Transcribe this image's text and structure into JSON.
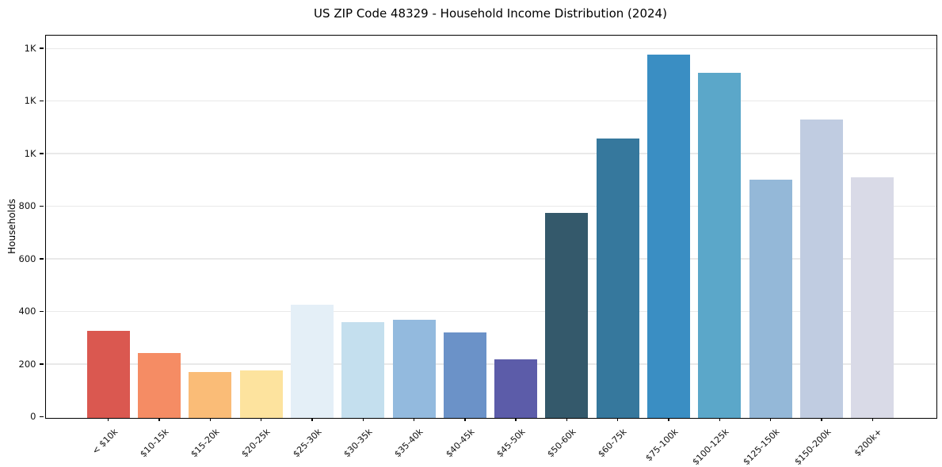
{
  "chart_data": {
    "type": "bar",
    "title": "US ZIP Code 48329 - Household Income Distribution (2024)",
    "xlabel": "",
    "ylabel": "Households",
    "categories": [
      "< $10k",
      "$10-15k",
      "$15-20k",
      "$20-25k",
      "$25-30k",
      "$30-35k",
      "$35-40k",
      "$40-45k",
      "$45-50k",
      "$50-60k",
      "$60-75k",
      "$75-100k",
      "$100-125k",
      "$125-150k",
      "$150-200k",
      "$200k+"
    ],
    "values": [
      330,
      245,
      173,
      178,
      430,
      362,
      372,
      322,
      220,
      778,
      1060,
      1380,
      1310,
      905,
      1133,
      912
    ],
    "bar_colors": [
      "#da5850",
      "#f58c64",
      "#fabc77",
      "#fde39e",
      "#e4eff7",
      "#c4dfee",
      "#93bade",
      "#6b92c8",
      "#5c5ca9",
      "#34596b",
      "#36789d",
      "#3a8ec3",
      "#5ba7c9",
      "#94b8d8",
      "#c0cce1",
      "#d9dae7"
    ],
    "ylim": [
      0,
      1450
    ],
    "yticks": [
      {
        "value": 0,
        "label": "0"
      },
      {
        "value": 200,
        "label": "200"
      },
      {
        "value": 400,
        "label": "400"
      },
      {
        "value": 600,
        "label": "600"
      },
      {
        "value": 800,
        "label": "800"
      },
      {
        "value": 1000,
        "label": "1K"
      },
      {
        "value": 1200,
        "label": "1K"
      },
      {
        "value": 1400,
        "label": "1K"
      }
    ],
    "grid": "horizontal",
    "legend": "none",
    "colors": {
      "background": "#ffffff",
      "spine": "#000000",
      "gridline": "#e9e9e9",
      "tick": "#000000",
      "text": "#111111"
    }
  }
}
